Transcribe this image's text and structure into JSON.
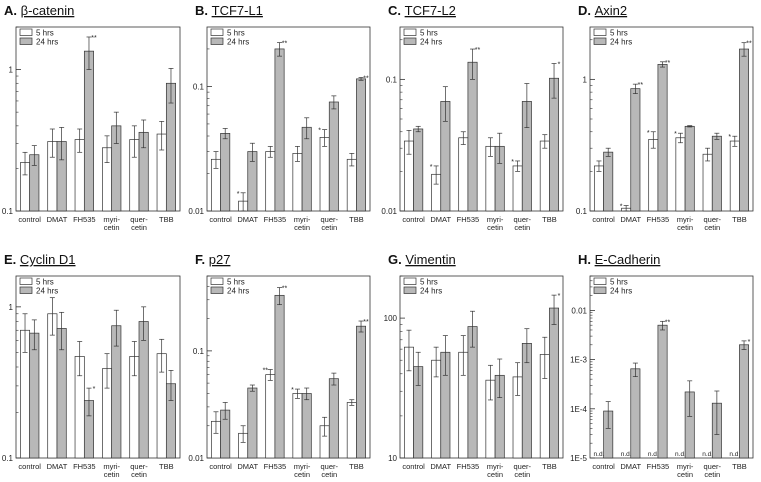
{
  "chart_data": [
    {
      "type": "bar",
      "panel": "A.",
      "title": "β-catenin",
      "yscale": "log",
      "ylim": [
        0.1,
        2
      ],
      "yticks": [
        {
          "v": 1,
          "label": "1"
        },
        {
          "v": 0.1,
          "label": "0.1"
        }
      ],
      "categories": [
        "control",
        "DMAT",
        "FH535",
        "myri-|cetin",
        "quer-|cetin",
        "TBB"
      ],
      "series": [
        {
          "name": "5 hrs",
          "color": "#ffffff",
          "values": [
            0.22,
            0.31,
            0.32,
            0.28,
            0.32,
            0.35
          ],
          "errors": [
            0.04,
            0.07,
            0.06,
            0.06,
            0.08,
            0.08
          ],
          "marks": [
            "",
            "",
            "",
            "",
            "",
            ""
          ]
        },
        {
          "name": "24 hrs",
          "color": "#b8b8b8",
          "values": [
            0.25,
            0.31,
            1.35,
            0.4,
            0.36,
            0.8
          ],
          "errors": [
            0.04,
            0.08,
            0.35,
            0.1,
            0.08,
            0.22
          ],
          "marks": [
            "",
            "",
            "**",
            "",
            "",
            ""
          ]
        }
      ],
      "nd": [
        [
          false,
          false
        ],
        [
          false,
          false
        ],
        [
          false,
          false
        ],
        [
          false,
          false
        ],
        [
          false,
          false
        ],
        [
          false,
          false
        ]
      ]
    },
    {
      "type": "bar",
      "panel": "B.",
      "title": "TCF7-L1",
      "yscale": "log",
      "ylim": [
        0.01,
        0.3
      ],
      "yticks": [
        {
          "v": 0.1,
          "label": "0.1"
        },
        {
          "v": 0.01,
          "label": "0.01"
        }
      ],
      "categories": [
        "control",
        "DMAT",
        "FH535",
        "myri-|cetin",
        "quer-|cetin",
        "TBB"
      ],
      "series": [
        {
          "name": "5 hrs",
          "color": "#ffffff",
          "values": [
            0.026,
            0.012,
            0.03,
            0.029,
            0.039,
            0.026
          ],
          "errors": [
            0.004,
            0.002,
            0.003,
            0.004,
            0.006,
            0.003
          ],
          "marks": [
            "",
            "*",
            "",
            "",
            "*",
            ""
          ]
        },
        {
          "name": "24 hrs",
          "color": "#b8b8b8",
          "values": [
            0.042,
            0.03,
            0.2,
            0.047,
            0.075,
            0.115
          ],
          "errors": [
            0.004,
            0.005,
            0.025,
            0.009,
            0.009,
            0.003
          ],
          "marks": [
            "",
            "",
            "**",
            "",
            "",
            "**"
          ]
        }
      ],
      "nd": [
        [
          false,
          false
        ],
        [
          false,
          false
        ],
        [
          false,
          false
        ],
        [
          false,
          false
        ],
        [
          false,
          false
        ],
        [
          false,
          false
        ]
      ]
    },
    {
      "type": "bar",
      "panel": "C.",
      "title": "TCF7-L2",
      "yscale": "log",
      "ylim": [
        0.01,
        0.25
      ],
      "yticks": [
        {
          "v": 0.1,
          "label": "0.1"
        },
        {
          "v": 0.01,
          "label": "0.01"
        }
      ],
      "categories": [
        "control",
        "DMAT",
        "FH535",
        "myri-|cetin",
        "quer-|cetin",
        "TBB"
      ],
      "series": [
        {
          "name": "5 hrs",
          "color": "#ffffff",
          "values": [
            0.034,
            0.019,
            0.036,
            0.031,
            0.022,
            0.034
          ],
          "errors": [
            0.007,
            0.003,
            0.004,
            0.005,
            0.002,
            0.004
          ],
          "marks": [
            "",
            "*",
            "",
            "",
            "*",
            ""
          ]
        },
        {
          "name": "24 hrs",
          "color": "#b8b8b8",
          "values": [
            0.042,
            0.068,
            0.135,
            0.031,
            0.068,
            0.102
          ],
          "errors": [
            0.002,
            0.02,
            0.035,
            0.008,
            0.025,
            0.03
          ],
          "marks": [
            "",
            "",
            "**",
            "",
            "",
            "*"
          ]
        }
      ],
      "nd": [
        [
          false,
          false
        ],
        [
          false,
          false
        ],
        [
          false,
          false
        ],
        [
          false,
          false
        ],
        [
          false,
          false
        ],
        [
          false,
          false
        ]
      ]
    },
    {
      "type": "bar",
      "panel": "D.",
      "title": "Axin2",
      "yscale": "log",
      "ylim": [
        0.1,
        2.5
      ],
      "yticks": [
        {
          "v": 1,
          "label": "1"
        },
        {
          "v": 0.1,
          "label": "0.1"
        }
      ],
      "categories": [
        "control",
        "DMAT",
        "FH535",
        "myri-|cetin",
        "quer-|cetin",
        "TBB"
      ],
      "series": [
        {
          "name": "5 hrs",
          "color": "#ffffff",
          "values": [
            0.22,
            0.105,
            0.35,
            0.36,
            0.27,
            0.34
          ],
          "errors": [
            0.02,
            0.005,
            0.05,
            0.03,
            0.03,
            0.03
          ],
          "marks": [
            "",
            "*",
            "*",
            "*",
            "",
            "*"
          ]
        },
        {
          "name": "24 hrs",
          "color": "#b8b8b8",
          "values": [
            0.28,
            0.85,
            1.3,
            0.44,
            0.37,
            1.7
          ],
          "errors": [
            0.02,
            0.07,
            0.06,
            0.005,
            0.02,
            0.2
          ],
          "marks": [
            "",
            "**",
            "**",
            "",
            "",
            "**"
          ]
        }
      ],
      "nd": [
        [
          false,
          false
        ],
        [
          false,
          false
        ],
        [
          false,
          false
        ],
        [
          false,
          false
        ],
        [
          false,
          false
        ],
        [
          false,
          false
        ]
      ]
    },
    {
      "type": "bar",
      "panel": "E.",
      "title": "Cyclin D1",
      "yscale": "log",
      "ylim": [
        0.1,
        1.6
      ],
      "yticks": [
        {
          "v": 1,
          "label": "1"
        },
        {
          "v": 0.1,
          "label": "0.1"
        }
      ],
      "categories": [
        "control",
        "DMAT",
        "FH535",
        "myri-|cetin",
        "quer-|cetin",
        "TBB"
      ],
      "series": [
        {
          "name": "5 hrs",
          "color": "#ffffff",
          "values": [
            0.7,
            0.9,
            0.47,
            0.39,
            0.47,
            0.49
          ],
          "errors": [
            0.2,
            0.25,
            0.12,
            0.1,
            0.12,
            0.12
          ],
          "marks": [
            "",
            "",
            "",
            "",
            "",
            ""
          ]
        },
        {
          "name": "24 hrs",
          "color": "#b8b8b8",
          "values": [
            0.67,
            0.72,
            0.24,
            0.75,
            0.8,
            0.31
          ],
          "errors": [
            0.15,
            0.2,
            0.05,
            0.2,
            0.2,
            0.07
          ],
          "marks": [
            "",
            "",
            "*",
            "",
            "",
            ""
          ]
        }
      ],
      "nd": [
        [
          false,
          false
        ],
        [
          false,
          false
        ],
        [
          false,
          false
        ],
        [
          false,
          false
        ],
        [
          false,
          false
        ],
        [
          false,
          false
        ]
      ]
    },
    {
      "type": "bar",
      "panel": "F.",
      "title": "p27",
      "yscale": "log",
      "ylim": [
        0.01,
        0.5
      ],
      "yticks": [
        {
          "v": 0.1,
          "label": "0.1"
        },
        {
          "v": 0.01,
          "label": "0.01"
        }
      ],
      "categories": [
        "control",
        "DMAT",
        "FH535",
        "myri-|cetin",
        "quer-|cetin",
        "TBB"
      ],
      "series": [
        {
          "name": "5 hrs",
          "color": "#ffffff",
          "values": [
            0.022,
            0.017,
            0.06,
            0.04,
            0.02,
            0.033
          ],
          "errors": [
            0.005,
            0.003,
            0.007,
            0.004,
            0.004,
            0.002
          ],
          "marks": [
            "",
            "",
            "**",
            "*",
            "",
            ""
          ]
        },
        {
          "name": "24 hrs",
          "color": "#b8b8b8",
          "values": [
            0.028,
            0.045,
            0.33,
            0.04,
            0.055,
            0.17
          ],
          "errors": [
            0.005,
            0.003,
            0.06,
            0.005,
            0.007,
            0.02
          ],
          "marks": [
            "",
            "",
            "**",
            "",
            "",
            "**"
          ]
        }
      ],
      "nd": [
        [
          false,
          false
        ],
        [
          false,
          false
        ],
        [
          false,
          false
        ],
        [
          false,
          false
        ],
        [
          false,
          false
        ],
        [
          false,
          false
        ]
      ]
    },
    {
      "type": "bar",
      "panel": "G.",
      "title": "Vimentin",
      "yscale": "log",
      "ylim": [
        10,
        200
      ],
      "yticks": [
        {
          "v": 100,
          "label": "100"
        },
        {
          "v": 10,
          "label": "10"
        }
      ],
      "categories": [
        "control",
        "DMAT",
        "FH535",
        "myri-|cetin",
        "quer-|cetin",
        "TBB"
      ],
      "series": [
        {
          "name": "5 hrs",
          "color": "#ffffff",
          "values": [
            62,
            50,
            57,
            36,
            38,
            55
          ],
          "errors": [
            20,
            12,
            18,
            10,
            10,
            18
          ],
          "marks": [
            "",
            "",
            "",
            "",
            "",
            ""
          ]
        },
        {
          "name": "24 hrs",
          "color": "#b8b8b8",
          "values": [
            45,
            57,
            87,
            39,
            66,
            118
          ],
          "errors": [
            12,
            18,
            25,
            12,
            18,
            28
          ],
          "marks": [
            "",
            "",
            "",
            "",
            "",
            "*"
          ]
        }
      ],
      "nd": [
        [
          false,
          false
        ],
        [
          false,
          false
        ],
        [
          false,
          false
        ],
        [
          false,
          false
        ],
        [
          false,
          false
        ],
        [
          false,
          false
        ]
      ]
    },
    {
      "type": "bar",
      "panel": "H.",
      "title": "E-Cadherin",
      "yscale": "log",
      "ylim": [
        1e-05,
        0.05
      ],
      "yticks": [
        {
          "v": 0.01,
          "label": "0.01"
        },
        {
          "v": 0.001,
          "label": "1E-3"
        },
        {
          "v": 0.0001,
          "label": "1E-4"
        },
        {
          "v": 1e-05,
          "label": "1E-5"
        }
      ],
      "categories": [
        "control",
        "DMAT",
        "FH535",
        "myri-|cetin",
        "quer-|cetin",
        "TBB"
      ],
      "nd_label": "n.d.",
      "series": [
        {
          "name": "5 hrs",
          "color": "#ffffff",
          "values": [
            null,
            null,
            null,
            null,
            null,
            null
          ],
          "errors": [
            0,
            0,
            0,
            0,
            0,
            0
          ],
          "marks": [
            "",
            "",
            "",
            "",
            "",
            ""
          ]
        },
        {
          "name": "24 hrs",
          "color": "#b8b8b8",
          "values": [
            9e-05,
            0.00065,
            0.005,
            0.00022,
            0.00013,
            0.002
          ],
          "errors": [
            5e-05,
            0.0002,
            0.001,
            0.00015,
            0.0001,
            0.0004
          ],
          "marks": [
            "",
            "",
            "**",
            "",
            "",
            "*"
          ]
        }
      ],
      "nd": [
        [
          true,
          false
        ],
        [
          true,
          false
        ],
        [
          true,
          false
        ],
        [
          true,
          false
        ],
        [
          true,
          false
        ],
        [
          true,
          false
        ]
      ]
    }
  ]
}
